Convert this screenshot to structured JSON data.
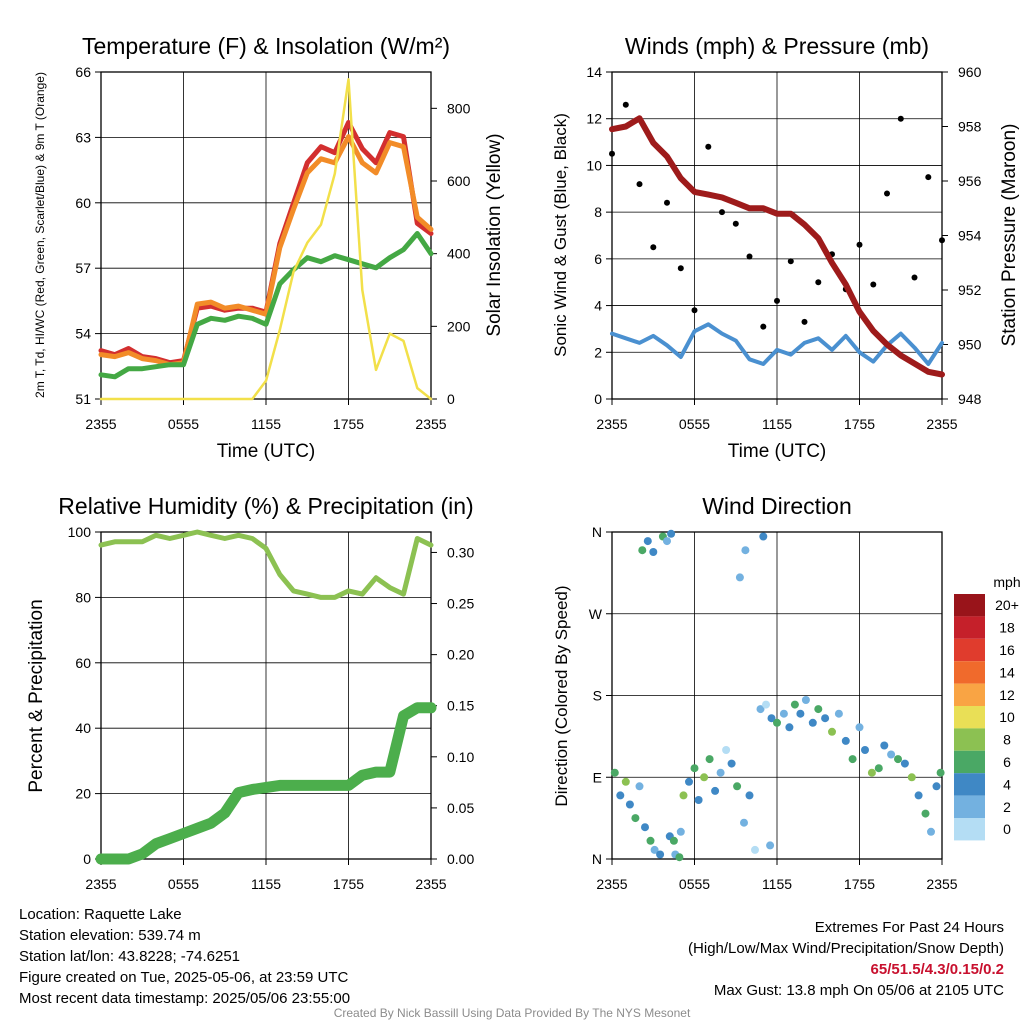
{
  "colors": {
    "temp": "#d32f2f",
    "ninem": "#f28c28",
    "dew": "#44a844",
    "solar": "#f2e04a",
    "wind": "#4a90d0",
    "gust": "#000000",
    "pressure": "#9e1b1b",
    "rh": "#8cc152",
    "precip": "#4cae4c"
  },
  "x_ticks": [
    "2355",
    "0555",
    "1155",
    "1755",
    "2355"
  ],
  "colorbar": {
    "unit": "mph",
    "labels": [
      "20+",
      "18",
      "16",
      "14",
      "12",
      "10",
      "8",
      "6",
      "4",
      "2",
      "0"
    ],
    "colors": [
      "#99141a",
      "#c5202a",
      "#e03c2d",
      "#f06a2c",
      "#f9a444",
      "#e9df56",
      "#8cc152",
      "#4aa865",
      "#3f88c5",
      "#73b1e0",
      "#b4ddf4"
    ]
  },
  "chart_data": [
    {
      "id": "temperature",
      "type": "line",
      "title": "Temperature (F) & Insolation (W/m²)",
      "xlabel": "Time (UTC)",
      "ylabel": "2m T, Td, HI/WC (Red, Green, Scarlet/Blue) & 9m T (Orange)",
      "y2label": "Solar Insolation (Yellow)",
      "ylim": [
        49.8,
        66
      ],
      "y_ticks": [
        51,
        54,
        57,
        60,
        63,
        66
      ],
      "y2lim": [
        0,
        900
      ],
      "y2_ticks": [
        0,
        200,
        400,
        600,
        800
      ],
      "x": [
        0,
        1,
        2,
        3,
        4,
        5,
        6,
        7,
        8,
        9,
        10,
        11,
        12,
        13,
        14,
        15,
        16,
        17,
        18,
        19,
        20,
        21,
        22,
        23,
        24
      ],
      "series": [
        {
          "name": "2m T",
          "color_key": "temp",
          "axis": "left",
          "values": [
            52.2,
            52.0,
            52.3,
            51.9,
            51.8,
            51.6,
            51.7,
            54.3,
            54.4,
            54.2,
            54.3,
            54.3,
            54.1,
            57.5,
            59.5,
            61.5,
            62.3,
            62.0,
            63.5,
            62.2,
            61.5,
            63.0,
            62.8,
            58.5,
            58.0
          ]
        },
        {
          "name": "9m T",
          "color_key": "ninem",
          "axis": "left",
          "values": [
            52.0,
            51.9,
            52.1,
            51.8,
            51.7,
            51.5,
            51.6,
            54.5,
            54.6,
            54.3,
            54.4,
            54.2,
            54.0,
            57.3,
            59.2,
            61.0,
            61.7,
            61.5,
            62.8,
            61.5,
            61.0,
            62.5,
            62.3,
            58.8,
            58.2
          ]
        },
        {
          "name": "2m Td",
          "color_key": "dew",
          "axis": "left",
          "values": [
            51.0,
            50.9,
            51.3,
            51.3,
            51.4,
            51.5,
            51.5,
            53.5,
            53.8,
            53.7,
            53.9,
            53.8,
            53.5,
            55.5,
            56.2,
            56.8,
            56.6,
            56.9,
            56.7,
            56.5,
            56.3,
            56.8,
            57.2,
            58.0,
            57.0
          ]
        },
        {
          "name": "Solar",
          "color_key": "solar",
          "axis": "right",
          "values": [
            0,
            0,
            0,
            0,
            0,
            0,
            0,
            0,
            0,
            0,
            0,
            0,
            50,
            190,
            350,
            430,
            480,
            620,
            880,
            300,
            80,
            180,
            160,
            30,
            0
          ]
        }
      ]
    },
    {
      "id": "winds",
      "type": "line",
      "title": "Winds (mph) & Pressure (mb)",
      "xlabel": "Time (UTC)",
      "ylabel": "Sonic Wind & Gust (Blue, Black)",
      "y2label": "Station Pressure (Maroon)",
      "ylim": [
        0,
        14
      ],
      "y_ticks": [
        0,
        2,
        4,
        6,
        8,
        10,
        12,
        14
      ],
      "y2lim": [
        948,
        960
      ],
      "y2_ticks": [
        948,
        950,
        952,
        954,
        956,
        958,
        960
      ],
      "x": [
        0,
        1,
        2,
        3,
        4,
        5,
        6,
        7,
        8,
        9,
        10,
        11,
        12,
        13,
        14,
        15,
        16,
        17,
        18,
        19,
        20,
        21,
        22,
        23,
        24
      ],
      "series": [
        {
          "name": "Sonic Wind",
          "color_key": "wind",
          "axis": "left",
          "values": [
            2.8,
            2.6,
            2.4,
            2.7,
            2.3,
            1.8,
            2.9,
            3.2,
            2.8,
            2.5,
            1.7,
            1.5,
            2.1,
            1.9,
            2.4,
            2.6,
            2.1,
            2.7,
            2.0,
            1.6,
            2.3,
            2.8,
            2.2,
            1.5,
            2.4
          ]
        },
        {
          "name": "Gust",
          "color_key": "gust",
          "axis": "left",
          "style": "points",
          "values": [
            10.5,
            12.6,
            9.2,
            6.5,
            8.4,
            5.6,
            3.8,
            10.8,
            8.0,
            7.5,
            6.1,
            3.1,
            4.2,
            5.9,
            3.3,
            5.0,
            6.2,
            4.7,
            6.6,
            4.9,
            8.8,
            12.0,
            5.2,
            9.5,
            6.8
          ]
        },
        {
          "name": "Station Pressure",
          "color_key": "pressure",
          "axis": "right",
          "values": [
            957.9,
            958.0,
            958.3,
            957.4,
            956.9,
            956.1,
            955.6,
            955.5,
            955.4,
            955.2,
            955.0,
            955.0,
            954.8,
            954.8,
            954.4,
            953.9,
            953.0,
            952.2,
            951.2,
            950.5,
            950.0,
            949.6,
            949.3,
            949.0,
            948.9
          ]
        }
      ]
    },
    {
      "id": "humidity",
      "type": "line",
      "title": "Relative Humidity (%) & Precipitation (in)",
      "xlabel": "",
      "ylabel": "Percent & Precipitation",
      "ylim": [
        0,
        100
      ],
      "y_ticks": [
        0,
        20,
        40,
        60,
        80,
        100
      ],
      "y2lim": [
        0,
        0.32
      ],
      "y2_ticks": [
        "0.00",
        "0.05",
        "0.10",
        "0.15",
        "0.20",
        "0.25",
        "0.30"
      ],
      "x": [
        0,
        1,
        2,
        3,
        4,
        5,
        6,
        7,
        8,
        9,
        10,
        11,
        12,
        13,
        14,
        15,
        16,
        17,
        18,
        19,
        20,
        21,
        22,
        23,
        24
      ],
      "series": [
        {
          "name": "RH",
          "color_key": "rh",
          "axis": "left",
          "values": [
            96,
            97,
            97,
            97,
            99,
            98,
            99,
            100,
            99,
            98,
            99,
            98,
            95,
            87,
            82,
            81,
            80,
            80,
            82,
            81,
            86,
            83,
            81,
            98,
            96
          ]
        },
        {
          "name": "Precipitation",
          "color_key": "precip",
          "axis": "right",
          "values": [
            0.0,
            0.0,
            0.0,
            0.005,
            0.015,
            0.02,
            0.025,
            0.03,
            0.035,
            0.045,
            0.065,
            0.068,
            0.07,
            0.072,
            0.072,
            0.072,
            0.072,
            0.072,
            0.072,
            0.082,
            0.085,
            0.085,
            0.14,
            0.148,
            0.148
          ]
        }
      ]
    },
    {
      "id": "direction",
      "type": "scatter",
      "title": "Wind Direction",
      "xlabel": "",
      "ylabel": "Direction (Colored By Speed)",
      "y_ticks": [
        "N",
        "E",
        "S",
        "W",
        "N"
      ],
      "ylim": [
        0,
        360
      ],
      "x": [
        0.2,
        0.6,
        1.0,
        1.3,
        1.7,
        2.0,
        2.4,
        2.8,
        3.1,
        3.5,
        3.7,
        4.0,
        4.3,
        4.6,
        4.9,
        5.2,
        5.6,
        6.0,
        6.3,
        6.7,
        7.1,
        7.5,
        7.9,
        8.3,
        8.7,
        9.1,
        9.6,
        10.0,
        10.4,
        10.8,
        11.2,
        11.6,
        12.0,
        12.5,
        12.9,
        13.3,
        13.7,
        14.1,
        14.6,
        15.0,
        15.5,
        16.0,
        16.5,
        17.0,
        17.5,
        18.0,
        18.4,
        18.9,
        19.4,
        19.8,
        20.3,
        20.8,
        21.3,
        21.8,
        22.3,
        22.8,
        23.2,
        23.6,
        23.9,
        2.2,
        2.6,
        3.0,
        9.3,
        9.7,
        11.0,
        11.5,
        4.2,
        4.5,
        5.0
      ],
      "y": [
        95,
        70,
        85,
        60,
        45,
        80,
        35,
        20,
        10,
        5,
        355,
        350,
        358,
        5,
        2,
        70,
        85,
        100,
        65,
        90,
        110,
        75,
        95,
        120,
        105,
        80,
        40,
        70,
        10,
        165,
        170,
        155,
        150,
        160,
        145,
        170,
        160,
        175,
        150,
        165,
        155,
        140,
        160,
        130,
        110,
        145,
        120,
        95,
        100,
        125,
        115,
        110,
        105,
        90,
        70,
        50,
        30,
        80,
        95,
        340,
        350,
        338,
        310,
        340,
        355,
        15,
        25,
        20,
        30
      ],
      "speed": [
        3,
        2,
        4,
        2,
        3,
        1,
        2,
        3,
        1,
        2,
        3,
        1,
        2,
        1,
        3,
        4,
        2,
        3,
        2,
        4,
        3,
        2,
        1,
        0,
        2,
        3,
        1,
        2,
        0,
        1,
        0,
        2,
        3,
        1,
        2,
        3,
        2,
        1,
        2,
        3,
        2,
        4,
        1,
        2,
        3,
        1,
        2,
        4,
        3,
        2,
        1,
        3,
        2,
        4,
        2,
        3,
        1,
        2,
        3,
        3,
        2,
        2,
        1,
        1,
        2,
        1,
        2,
        3,
        1
      ]
    }
  ],
  "info": {
    "location": "Location: Raquette Lake",
    "elevation": "Station elevation: 539.74 m",
    "latlon": "Station lat/lon: 43.8228; -74.6251",
    "created": "Figure created on Tue, 2025-05-06, at 23:59 UTC",
    "recent": "Most recent data timestamp: 2025/05/06 23:55:00"
  },
  "extremes": {
    "title": "Extremes For Past 24 Hours",
    "subtitle": "(High/Low/Max Wind/Precipitation/Snow Depth)",
    "values": "65/51.5/4.3/0.15/0.2",
    "max_gust": "Max Gust: 13.8 mph On 05/06 at 2105 UTC"
  },
  "credit": "Created By Nick Bassill Using Data Provided By The NYS Mesonet"
}
